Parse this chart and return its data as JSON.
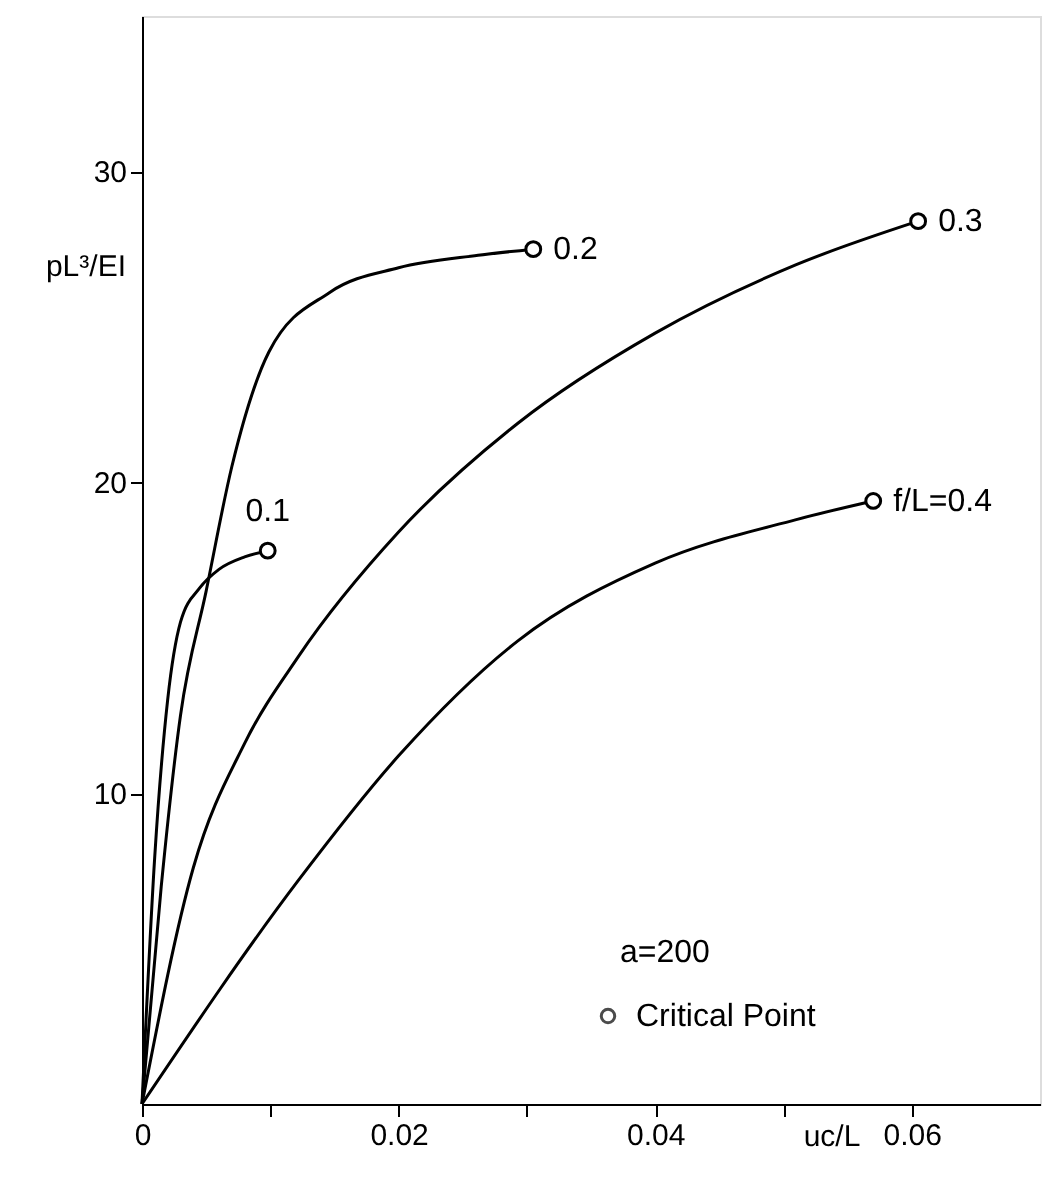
{
  "chart_data": {
    "type": "line",
    "xlabel": "uc/L",
    "ylabel": "pL³/EI",
    "legend_title": "a=200",
    "legend": "bottom right",
    "grid": false,
    "line_style": "solid",
    "marker": "none",
    "xlim": [
      0,
      0.07
    ],
    "ylim": [
      0,
      35
    ],
    "xticks": [
      0,
      {
        "value": 0.01,
        "label": null
      },
      0.02,
      {
        "value": 0.03,
        "label": null
      },
      0.04,
      {
        "value": 0.05,
        "label": null
      },
      0.06
    ],
    "yticks": [
      10,
      20,
      30
    ],
    "series": [
      {
        "name": "0.1",
        "color": "#000000",
        "x": [
          0,
          0.001,
          0.002,
          0.003,
          0.0045,
          0.006,
          0.008,
          0.0098
        ],
        "values": [
          0,
          8,
          13,
          15.5,
          16.6,
          17.2,
          17.6,
          17.8
        ]
      },
      {
        "name": "0.2",
        "color": "#000000",
        "x": [
          0,
          0.0015,
          0.003,
          0.005,
          0.007,
          0.0099,
          0.0146,
          0.02,
          0.0262,
          0.0305
        ],
        "values": [
          0,
          7,
          12.5,
          16.5,
          20.5,
          24.2,
          26.1,
          26.9,
          27.3,
          27.5
        ]
      },
      {
        "name": "0.3",
        "color": "#000000",
        "x": [
          0,
          0.004,
          0.008,
          0.0122,
          0.02,
          0.0293,
          0.04,
          0.051,
          0.0605
        ],
        "values": [
          0,
          7.6,
          11.6,
          14.4,
          18.4,
          21.9,
          24.8,
          27.0,
          28.4
        ]
      },
      {
        "name": "f/L=0.4",
        "color": "#000000",
        "x": [
          0,
          0.0122,
          0.02,
          0.0293,
          0.04,
          0.051,
          0.057
        ],
        "values": [
          0,
          7.2,
          11.2,
          14.9,
          17.4,
          18.8,
          19.4
        ]
      },
      {
        "name": "Critical Point",
        "type": "scatter",
        "marker": "circle",
        "color": "#000000",
        "x": [
          0.0098,
          0.0305,
          0.0605,
          0.057
        ],
        "values": [
          17.8,
          27.5,
          28.4,
          19.4
        ]
      }
    ]
  }
}
